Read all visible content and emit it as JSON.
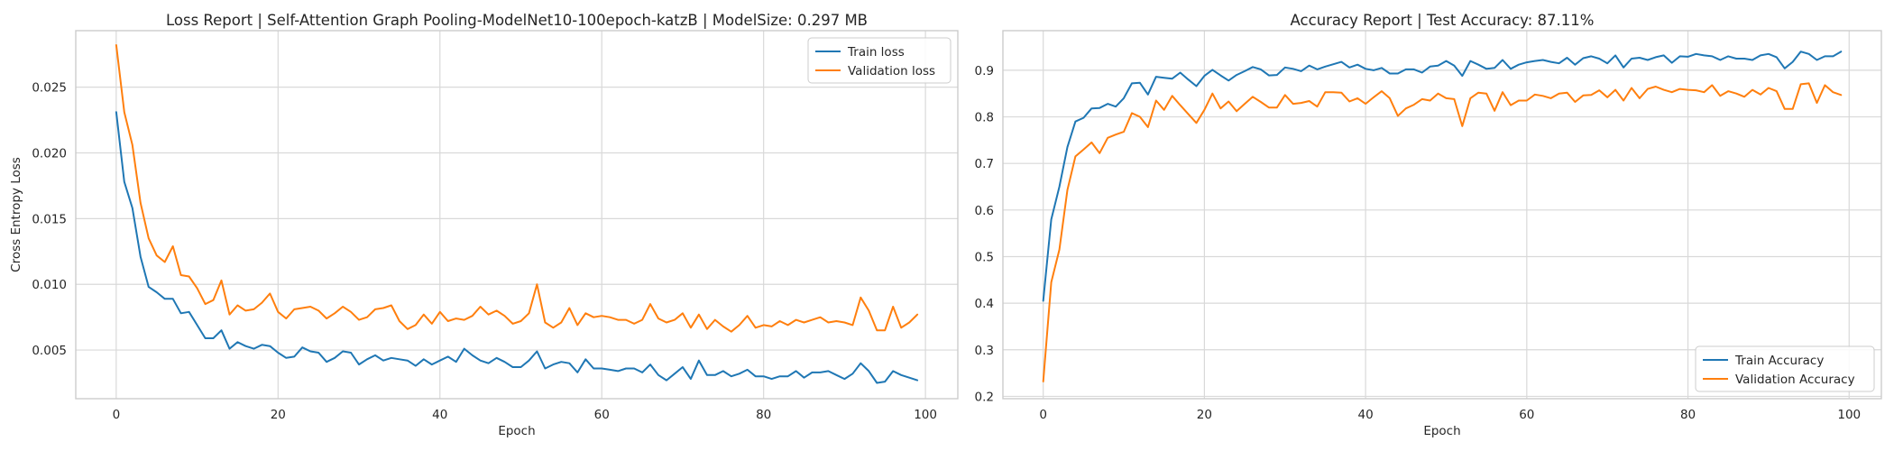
{
  "colors": {
    "train": "#1f77b4",
    "validation": "#ff7f0e"
  },
  "chart_data": [
    {
      "type": "line",
      "title": "Loss Report | Self-Attention Graph Pooling-ModelNet10-100epoch-katzB | ModelSize: 0.297 MB",
      "xlabel": "Epoch",
      "ylabel": "Cross Entropy Loss",
      "xlim": [
        -5,
        104
      ],
      "ylim": [
        0.0013,
        0.0293
      ],
      "xticks": [
        0,
        20,
        40,
        60,
        80,
        100
      ],
      "yticks": [
        0.005,
        0.01,
        0.015,
        0.02,
        0.025
      ],
      "ytick_labels": [
        "0.005",
        "0.010",
        "0.015",
        "0.020",
        "0.025"
      ],
      "grid": true,
      "legend_loc": "upper right",
      "series": [
        {
          "name": "Train loss",
          "color_key": "train",
          "values": [
            0.0231,
            0.0178,
            0.0158,
            0.0121,
            0.0098,
            0.0094,
            0.0089,
            0.0089,
            0.0078,
            0.0079,
            0.0069,
            0.0059,
            0.0059,
            0.0065,
            0.0051,
            0.0056,
            0.0053,
            0.0051,
            0.0054,
            0.0053,
            0.0048,
            0.0044,
            0.0045,
            0.0052,
            0.0049,
            0.0048,
            0.0041,
            0.0044,
            0.0049,
            0.0048,
            0.0039,
            0.0043,
            0.0046,
            0.0042,
            0.0044,
            0.0043,
            0.0042,
            0.0038,
            0.0043,
            0.0039,
            0.0042,
            0.0045,
            0.0041,
            0.0051,
            0.0046,
            0.0042,
            0.004,
            0.0044,
            0.0041,
            0.0037,
            0.0037,
            0.0042,
            0.0049,
            0.0036,
            0.0039,
            0.0041,
            0.004,
            0.0033,
            0.0043,
            0.0036,
            0.0036,
            0.0035,
            0.0034,
            0.0036,
            0.0036,
            0.0033,
            0.0039,
            0.0031,
            0.0027,
            0.0032,
            0.0037,
            0.0028,
            0.0042,
            0.0031,
            0.0031,
            0.0034,
            0.003,
            0.0032,
            0.0035,
            0.003,
            0.003,
            0.0028,
            0.003,
            0.003,
            0.0034,
            0.0029,
            0.0033,
            0.0033,
            0.0034,
            0.0031,
            0.0028,
            0.0032,
            0.004,
            0.0034,
            0.0025,
            0.0026,
            0.0034,
            0.0031,
            0.0029,
            0.0027
          ]
        },
        {
          "name": "Validation loss",
          "color_key": "validation",
          "values": [
            0.0282,
            0.0231,
            0.0206,
            0.0162,
            0.0135,
            0.0122,
            0.0117,
            0.0129,
            0.0107,
            0.0106,
            0.0097,
            0.0085,
            0.0088,
            0.0103,
            0.0077,
            0.0084,
            0.008,
            0.0081,
            0.0086,
            0.0093,
            0.0079,
            0.0074,
            0.0081,
            0.0082,
            0.0083,
            0.008,
            0.0074,
            0.0078,
            0.0083,
            0.0079,
            0.0073,
            0.0075,
            0.0081,
            0.0082,
            0.0084,
            0.0072,
            0.0066,
            0.0069,
            0.0077,
            0.007,
            0.0079,
            0.0072,
            0.0074,
            0.0073,
            0.0076,
            0.0083,
            0.0077,
            0.008,
            0.0076,
            0.007,
            0.0072,
            0.0078,
            0.01,
            0.0071,
            0.0067,
            0.0071,
            0.0082,
            0.0069,
            0.0078,
            0.0075,
            0.0076,
            0.0075,
            0.0073,
            0.0073,
            0.007,
            0.0073,
            0.0085,
            0.0074,
            0.0071,
            0.0073,
            0.0078,
            0.0067,
            0.0077,
            0.0066,
            0.0073,
            0.0068,
            0.0064,
            0.0069,
            0.0076,
            0.0067,
            0.0069,
            0.0068,
            0.0072,
            0.0069,
            0.0073,
            0.0071,
            0.0073,
            0.0075,
            0.0071,
            0.0072,
            0.0071,
            0.0069,
            0.009,
            0.008,
            0.0065,
            0.0065,
            0.0083,
            0.0067,
            0.0071,
            0.0077
          ]
        }
      ]
    },
    {
      "type": "line",
      "title": "Accuracy Report | Test Accuracy: 87.11%",
      "xlabel": "Epoch",
      "ylabel": "",
      "xlim": [
        -5,
        104
      ],
      "ylim": [
        0.195,
        0.985
      ],
      "xticks": [
        0,
        20,
        40,
        60,
        80,
        100
      ],
      "yticks": [
        0.2,
        0.3,
        0.4,
        0.5,
        0.6,
        0.7,
        0.8,
        0.9
      ],
      "ytick_labels": [
        "0.2",
        "0.3",
        "0.4",
        "0.5",
        "0.6",
        "0.7",
        "0.8",
        "0.9"
      ],
      "grid": true,
      "legend_loc": "lower right",
      "series": [
        {
          "name": "Train Accuracy",
          "color_key": "train",
          "values": [
            0.405,
            0.58,
            0.65,
            0.735,
            0.79,
            0.798,
            0.818,
            0.819,
            0.828,
            0.822,
            0.84,
            0.872,
            0.873,
            0.848,
            0.886,
            0.884,
            0.882,
            0.895,
            0.88,
            0.866,
            0.888,
            0.901,
            0.889,
            0.878,
            0.89,
            0.898,
            0.907,
            0.902,
            0.889,
            0.89,
            0.906,
            0.903,
            0.898,
            0.91,
            0.902,
            0.908,
            0.913,
            0.918,
            0.906,
            0.912,
            0.903,
            0.9,
            0.905,
            0.893,
            0.893,
            0.902,
            0.902,
            0.895,
            0.908,
            0.91,
            0.92,
            0.91,
            0.888,
            0.92,
            0.912,
            0.903,
            0.905,
            0.922,
            0.903,
            0.912,
            0.917,
            0.92,
            0.922,
            0.918,
            0.915,
            0.927,
            0.912,
            0.926,
            0.93,
            0.925,
            0.915,
            0.932,
            0.906,
            0.925,
            0.927,
            0.922,
            0.928,
            0.932,
            0.916,
            0.93,
            0.929,
            0.935,
            0.932,
            0.93,
            0.922,
            0.93,
            0.925,
            0.925,
            0.922,
            0.932,
            0.935,
            0.928,
            0.904,
            0.918,
            0.94,
            0.935,
            0.922,
            0.93,
            0.93,
            0.94
          ]
        },
        {
          "name": "Validation Accuracy",
          "color_key": "validation",
          "values": [
            0.232,
            0.445,
            0.515,
            0.643,
            0.715,
            0.73,
            0.745,
            0.722,
            0.755,
            0.762,
            0.768,
            0.808,
            0.8,
            0.778,
            0.835,
            0.815,
            0.845,
            0.825,
            0.806,
            0.787,
            0.815,
            0.85,
            0.818,
            0.833,
            0.812,
            0.828,
            0.843,
            0.832,
            0.82,
            0.82,
            0.847,
            0.828,
            0.83,
            0.834,
            0.822,
            0.853,
            0.853,
            0.852,
            0.833,
            0.84,
            0.828,
            0.842,
            0.855,
            0.84,
            0.802,
            0.818,
            0.826,
            0.838,
            0.835,
            0.85,
            0.84,
            0.838,
            0.78,
            0.84,
            0.852,
            0.85,
            0.813,
            0.853,
            0.825,
            0.835,
            0.835,
            0.848,
            0.845,
            0.84,
            0.85,
            0.852,
            0.832,
            0.846,
            0.847,
            0.857,
            0.842,
            0.858,
            0.835,
            0.862,
            0.84,
            0.86,
            0.865,
            0.858,
            0.853,
            0.86,
            0.858,
            0.857,
            0.853,
            0.868,
            0.845,
            0.855,
            0.85,
            0.843,
            0.858,
            0.848,
            0.862,
            0.855,
            0.817,
            0.817,
            0.87,
            0.872,
            0.83,
            0.868,
            0.853,
            0.847
          ]
        }
      ]
    }
  ]
}
